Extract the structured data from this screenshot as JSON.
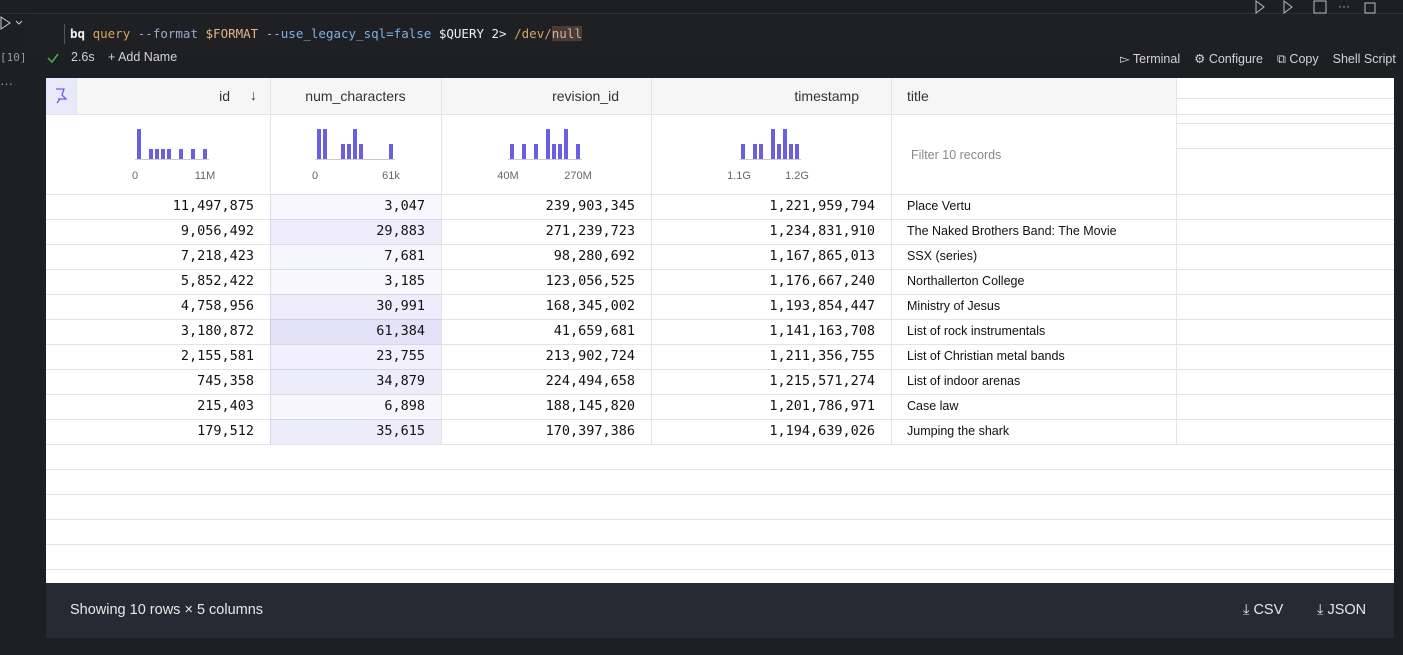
{
  "cell": {
    "exec_count": "[10]",
    "command": [
      "bq",
      "query",
      "--format",
      "$FORMAT",
      "--use_legacy_sql=false",
      "$QUERY",
      "2>",
      "/dev/",
      "null"
    ],
    "duration": "2.6s",
    "add_name": "Add Name",
    "actions": [
      "Terminal",
      "Configure",
      "Copy",
      "Shell Script"
    ]
  },
  "table": {
    "columns": [
      "id",
      "num_characters",
      "revision_id",
      "timestamp",
      "title"
    ],
    "histograms": [
      {
        "counts": [
          3,
          0,
          1,
          1,
          1,
          1,
          0,
          1,
          0,
          1,
          0,
          1
        ],
        "min_label": "0",
        "max_label": "11M"
      },
      {
        "counts": [
          2,
          2,
          0,
          0,
          1,
          1,
          2,
          1,
          0,
          0,
          0,
          0,
          1
        ],
        "min_label": "0",
        "max_label": "61k"
      },
      {
        "counts": [
          1,
          0,
          1,
          0,
          1,
          0,
          2,
          1,
          1,
          2,
          0,
          1
        ],
        "min_label": "40M",
        "max_label": "270M"
      },
      {
        "counts": [
          1,
          0,
          1,
          1,
          0,
          2,
          1,
          2,
          1,
          1
        ],
        "min_label": "1.1G",
        "max_label": "1.2G"
      }
    ],
    "filter_placeholder": "Filter 10 records",
    "rows": [
      [
        "11,497,875",
        "3,047",
        "239,903,345",
        "1,221,959,794",
        "Place Vertu"
      ],
      [
        "9,056,492",
        "29,883",
        "271,239,723",
        "1,234,831,910",
        "The Naked Brothers Band: The Movie"
      ],
      [
        "7,218,423",
        "7,681",
        "98,280,692",
        "1,167,865,013",
        "SSX (series)"
      ],
      [
        "5,852,422",
        "3,185",
        "123,056,525",
        "1,176,667,240",
        "Northallerton College"
      ],
      [
        "4,758,956",
        "30,991",
        "168,345,002",
        "1,193,854,447",
        "Ministry of Jesus"
      ],
      [
        "3,180,872",
        "61,384",
        "41,659,681",
        "1,141,163,708",
        "List of rock instrumentals"
      ],
      [
        "2,155,581",
        "23,755",
        "213,902,724",
        "1,211,356,755",
        "List of Christian metal bands"
      ],
      [
        "745,358",
        "34,879",
        "224,494,658",
        "1,215,571,274",
        "List of indoor arenas"
      ],
      [
        "215,403",
        "6,898",
        "188,145,820",
        "1,201,786,971",
        "Case law"
      ],
      [
        "179,512",
        "35,615",
        "170,397,386",
        "1,194,639,026",
        "Jumping the shark"
      ]
    ],
    "footer": "Showing 10 rows × 5 columns",
    "downloads": [
      "CSV",
      "JSON"
    ]
  }
}
